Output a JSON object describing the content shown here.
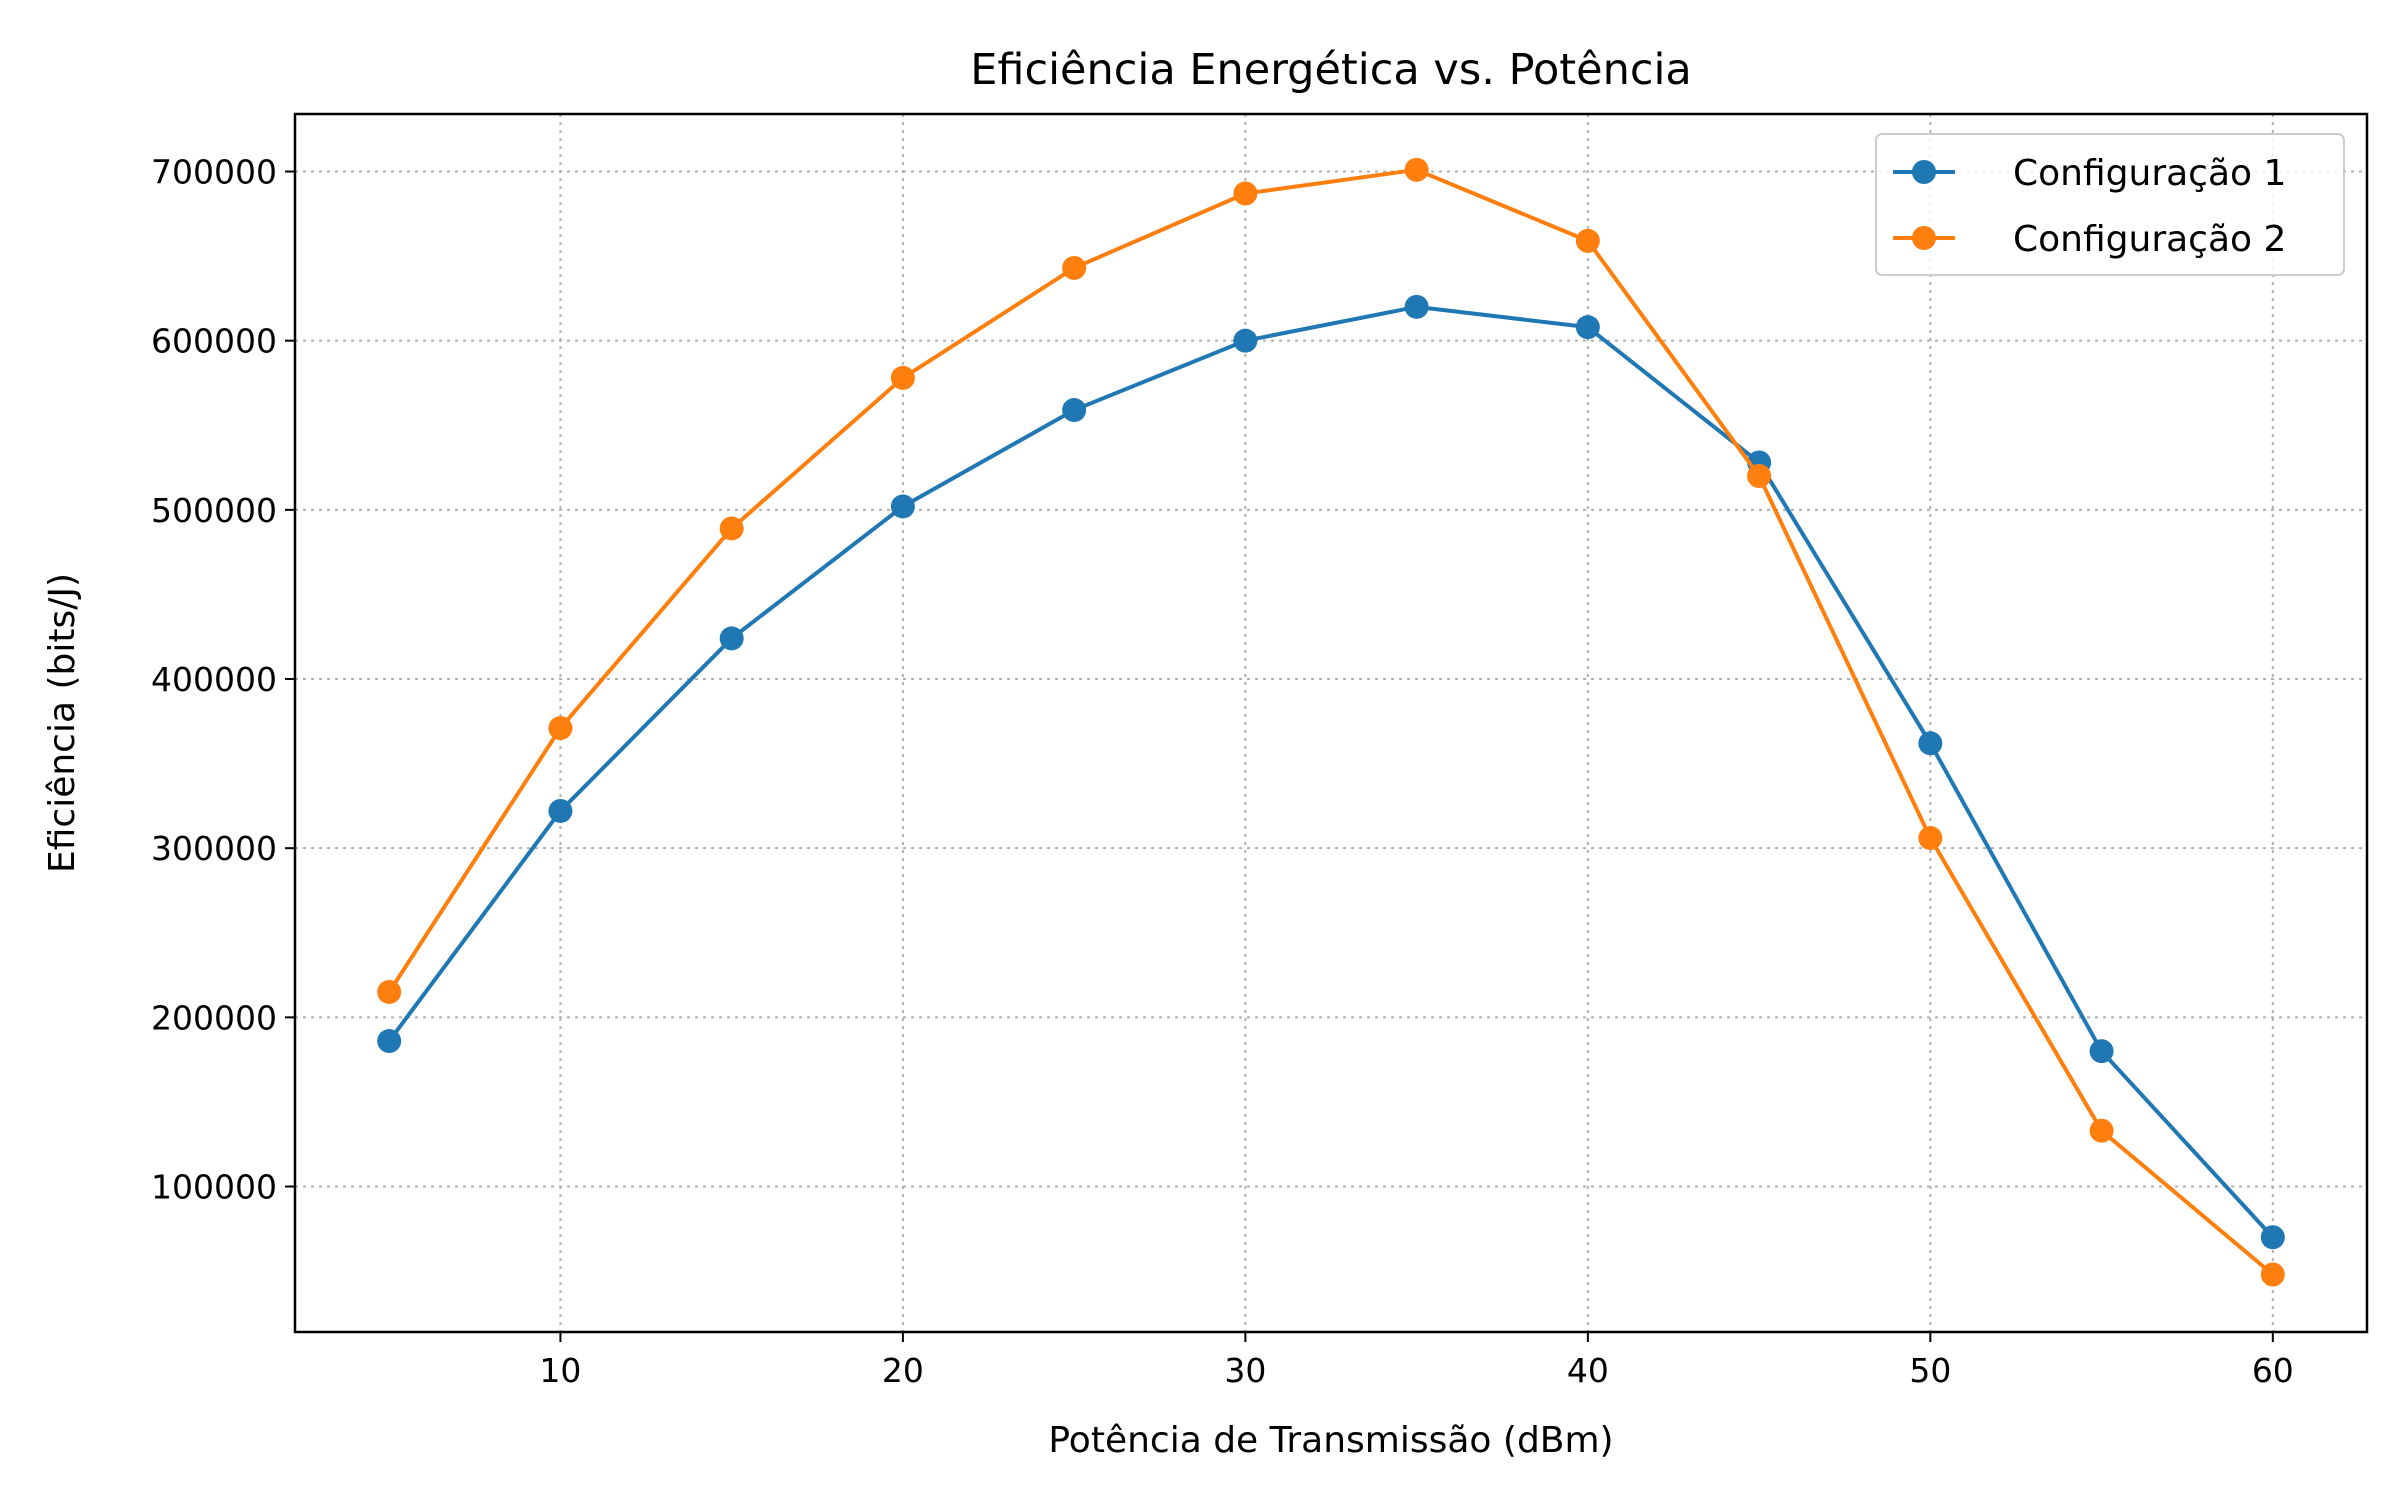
{
  "chart_data": {
    "type": "line",
    "title": "Eficiência Energética vs. Potência",
    "xlabel": "Potência de Transmissão (dBm)",
    "ylabel": "Eficiência (bits/J)",
    "x": [
      5,
      10,
      15,
      20,
      25,
      30,
      35,
      40,
      45,
      50,
      55,
      60
    ],
    "xlim": [
      2.25,
      62.75
    ],
    "ylim": [
      14000,
      734000
    ],
    "xticks": [
      10,
      20,
      30,
      40,
      50,
      60
    ],
    "xtick_labels": [
      "10",
      "20",
      "30",
      "40",
      "50",
      "60"
    ],
    "yticks": [
      100000,
      200000,
      300000,
      400000,
      500000,
      600000,
      700000
    ],
    "ytick_labels": [
      "100000",
      "200000",
      "300000",
      "400000",
      "500000",
      "600000",
      "700000"
    ],
    "grid": true,
    "legend_position": "top-right",
    "series": [
      {
        "name": "Configuração 1",
        "color": "#1f77b4",
        "values": [
          186000,
          322000,
          424000,
          502000,
          559000,
          600000,
          620000,
          608000,
          528000,
          362000,
          180000,
          70000
        ]
      },
      {
        "name": "Configuração 2",
        "color": "#ff7f0e",
        "values": [
          215000,
          371000,
          489000,
          578000,
          643000,
          687000,
          701000,
          659000,
          520000,
          306000,
          133000,
          48000
        ]
      }
    ]
  }
}
